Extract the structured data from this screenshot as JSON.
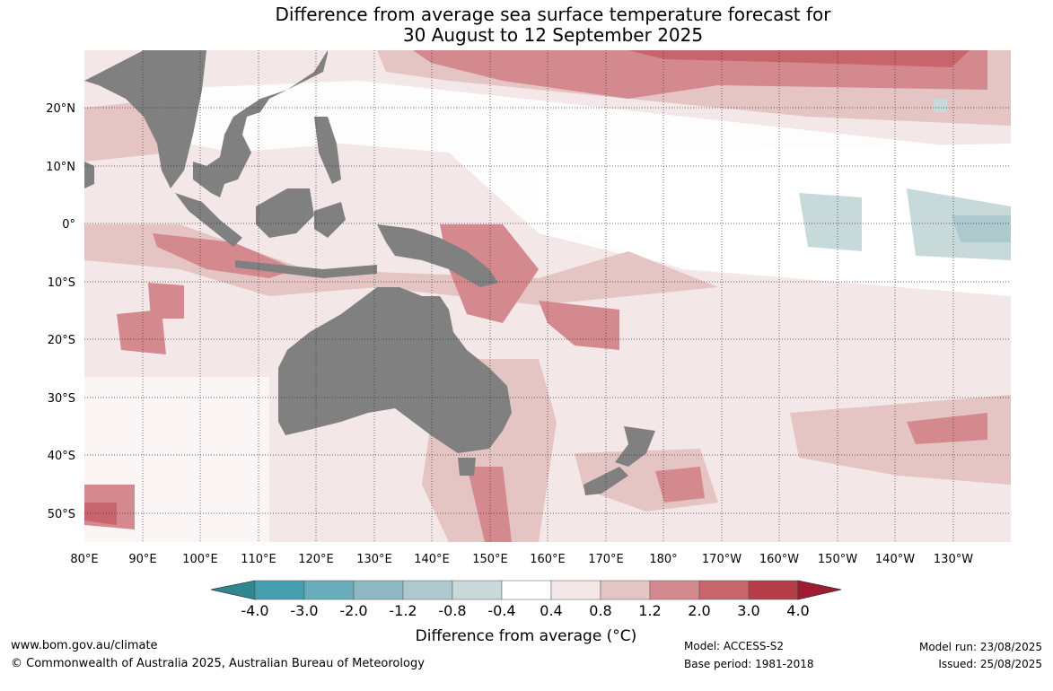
{
  "title": {
    "line1": "Difference from average sea surface temperature forecast for",
    "line2": "30 August to 12 September 2025"
  },
  "map": {
    "lat_labels": [
      "20°N",
      "10°N",
      "0°",
      "10°S",
      "20°S",
      "30°S",
      "40°S",
      "50°S"
    ],
    "lon_labels": [
      "80°E",
      "90°E",
      "100°E",
      "110°E",
      "120°E",
      "130°E",
      "140°E",
      "150°E",
      "160°E",
      "170°E",
      "180°",
      "170°W",
      "160°W",
      "150°W",
      "140°W",
      "130°W"
    ],
    "land_color": "#808080",
    "grid": "dotted"
  },
  "colorbar": {
    "label": "Difference from average (°C)",
    "ticks": [
      "-4.0",
      "-3.0",
      "-2.0",
      "-1.2",
      "-0.8",
      "-0.4",
      "0.4",
      "0.8",
      "1.2",
      "2.0",
      "3.0",
      "4.0"
    ],
    "colors": {
      "under": "#2e8791",
      "bins": [
        "#449ead",
        "#6aadbb",
        "#8eb9c3",
        "#adc9ce",
        "#c8d9da",
        "#ffffff",
        "#f4e7e7",
        "#e5c4c4",
        "#d4898f",
        "#c8646b",
        "#b53d48"
      ],
      "over": "#a01a32"
    }
  },
  "footer": {
    "website": "www.bom.gov.au/climate",
    "copyright": "© Commonwealth of Australia 2025, Australian Bureau of Meteorology",
    "model": "Model: ACCESS-S2",
    "base_period": "Base period: 1981-2018",
    "model_run": "Model run: 23/08/2025",
    "issued": "Issued: 25/08/2025"
  }
}
